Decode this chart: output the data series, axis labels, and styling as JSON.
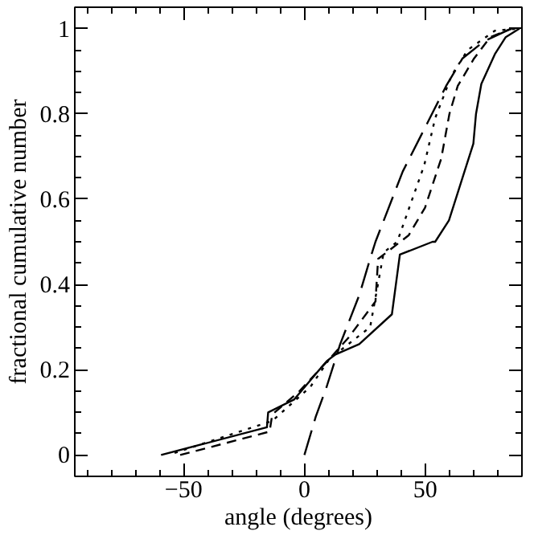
{
  "chart_data": {
    "type": "line",
    "xlabel": "angle (degrees)",
    "ylabel": "fractional cumulative number",
    "xlim": [
      -95,
      90
    ],
    "ylim": [
      -0.05,
      1.05
    ],
    "xticks": [
      -50,
      0,
      50
    ],
    "yticks": [
      0,
      0.2,
      0.4,
      0.6,
      0.8,
      1
    ],
    "grid": false,
    "marker": "none",
    "series": [
      {
        "color": "#000000",
        "line_style": "solid",
        "x": [
          -59.3,
          -15.5,
          -15,
          -4.3,
          4.7,
          9.2,
          12.6,
          22.7,
          36.2,
          39.5,
          53,
          54.1,
          59.8,
          65.4,
          69.9,
          71,
          73.2,
          78.8,
          83.3,
          89
        ],
        "values": [
          0,
          0.065,
          0.1,
          0.13,
          0.19,
          0.22,
          0.235,
          0.26,
          0.33,
          0.47,
          0.5,
          0.5,
          0.55,
          0.65,
          0.73,
          0.8,
          0.87,
          0.94,
          0.98,
          1
        ]
      },
      {
        "color": "#000000",
        "line_style": "dotted",
        "x": [
          -53.7,
          -13.3,
          2.5,
          10.3,
          18.2,
          27.2,
          32.8,
          38.4,
          49.6,
          54.1,
          60.9,
          67.6,
          78.8,
          89
        ],
        "values": [
          0.005,
          0.08,
          0.16,
          0.225,
          0.26,
          0.3,
          0.475,
          0.5,
          0.68,
          0.79,
          0.89,
          0.95,
          0.995,
          1
        ]
      },
      {
        "color": "#000000",
        "line_style": "dashed",
        "x": [
          -51.4,
          -14.4,
          -13.3,
          -2,
          10.3,
          18.2,
          29.4,
          30.5,
          43.1,
          49.9,
          56.6,
          60,
          63.4,
          70.2,
          76.9,
          85.8
        ],
        "values": [
          0,
          0.055,
          0.095,
          0.15,
          0.225,
          0.275,
          0.36,
          0.46,
          0.515,
          0.58,
          0.695,
          0.8,
          0.865,
          0.93,
          0.98,
          1
        ]
      },
      {
        "color": "#000000",
        "line_style": "longdash",
        "x": [
          0,
          4.7,
          9.2,
          14.8,
          22.7,
          27.2,
          29.4,
          40.7,
          51.9,
          58.6,
          65.4,
          74.3,
          85.6
        ],
        "values": [
          0,
          0.09,
          0.16,
          0.26,
          0.375,
          0.46,
          0.5,
          0.665,
          0.79,
          0.865,
          0.93,
          0.97,
          1
        ]
      }
    ]
  }
}
